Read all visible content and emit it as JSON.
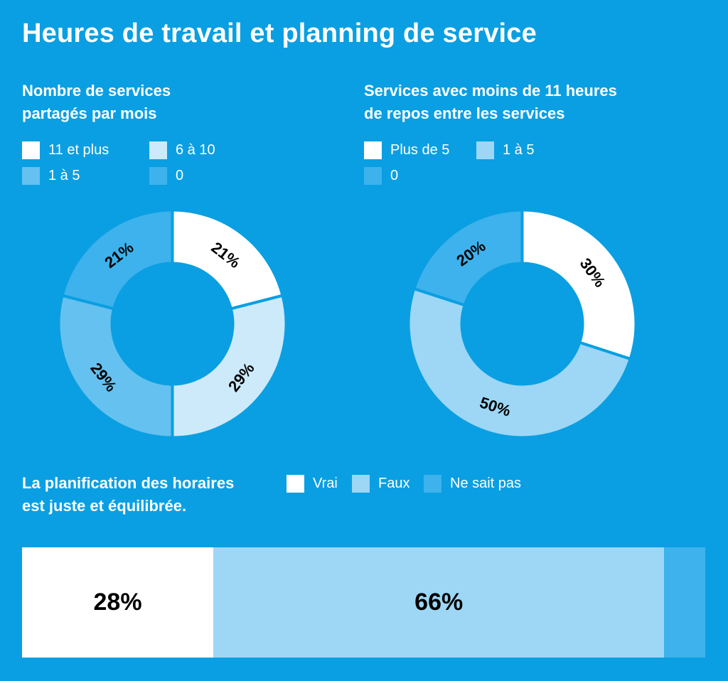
{
  "title": "Heures de travail et planning de service",
  "colors": {
    "background": "#0a9fe2",
    "white": "#ffffff",
    "very_light": "#cdeafa",
    "light": "#9dd7f5",
    "medium": "#65c1ef",
    "dark": "#3db2ec"
  },
  "chart_data": [
    {
      "type": "pie",
      "title": "Nombre de services partagés par mois",
      "title_lines": [
        "Nombre de services",
        "partagés par mois"
      ],
      "categories": [
        "11 et plus",
        "6 à 10",
        "1 à 5",
        "0"
      ],
      "values": [
        21,
        29,
        29,
        21
      ],
      "labels": [
        "21%",
        "29%",
        "29%",
        "21%"
      ],
      "colors": [
        "#ffffff",
        "#cdeafa",
        "#65c1ef",
        "#3db2ec"
      ]
    },
    {
      "type": "pie",
      "title": "Services avec moins de 11 heures de repos entre les services",
      "title_lines": [
        "Services avec moins de 11 heures",
        "de repos entre les services"
      ],
      "categories": [
        "Plus de 5",
        "1 à 5",
        "0"
      ],
      "values": [
        30,
        50,
        20
      ],
      "labels": [
        "30%",
        "50%",
        "20%"
      ],
      "colors": [
        "#ffffff",
        "#9dd7f5",
        "#3db2ec"
      ]
    },
    {
      "type": "bar",
      "orientation": "horizontal-stacked",
      "title": "La planification des horaires est juste et équilibrée.",
      "title_lines": [
        "La planification des horaires",
        "est juste et équilibrée."
      ],
      "categories": [
        "Vrai",
        "Faux",
        "Ne sait pas"
      ],
      "values": [
        28,
        66,
        6
      ],
      "labels": [
        "28%",
        "66%",
        ""
      ],
      "colors": [
        "#ffffff",
        "#9dd7f5",
        "#3db2ec"
      ]
    }
  ]
}
